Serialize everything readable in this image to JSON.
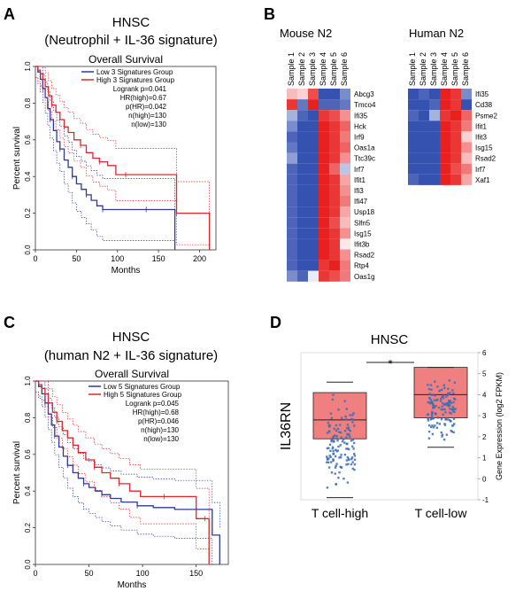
{
  "panels": {
    "a": {
      "letter": "A",
      "title_line1": "HNSC",
      "title_line2": "(Neutrophil + IL-36 signature)"
    },
    "b": {
      "letter": "B"
    },
    "c": {
      "letter": "C",
      "title_line1": "HNSC",
      "title_line2": "(human N2 + IL-36 signature)"
    },
    "d": {
      "letter": "D",
      "title": "HNSC"
    }
  },
  "colors": {
    "low": "#2b3a9a",
    "high": "#e0262b",
    "heat_low": "#1f3fa8",
    "heat_mid": "#ffffff",
    "heat_high": "#e8201f",
    "box_fill": "#f08080",
    "points": "#3a6fb6"
  },
  "chart_data": [
    {
      "id": "survival_a",
      "type": "line",
      "title": "Overall Survival",
      "xlabel": "Months",
      "ylabel": "Percent survival",
      "xlim": [
        0,
        220
      ],
      "ylim": [
        0,
        1.0
      ],
      "xticks": [
        "0",
        "50",
        "100",
        "150",
        "200"
      ],
      "yticks": [
        "0.0",
        "0.2",
        "0.4",
        "0.6",
        "0.8",
        "1.0"
      ],
      "legend": [
        "Low 3 Signatures Group",
        "High 3 Signatures Group"
      ],
      "stats": [
        "Logrank p=0.041",
        "HR(high)=0.67",
        "p(HR)=0.042",
        "n(high)=130",
        "n(low)=130"
      ],
      "series": [
        {
          "name": "Low 3 Signatures Group",
          "x": [
            0,
            3,
            6,
            9,
            12,
            15,
            18,
            22,
            26,
            30,
            35,
            40,
            45,
            50,
            56,
            62,
            68,
            75,
            82,
            95,
            110,
            135,
            150,
            165,
            170
          ],
          "y": [
            1.0,
            0.97,
            0.93,
            0.88,
            0.83,
            0.77,
            0.71,
            0.65,
            0.59,
            0.55,
            0.49,
            0.45,
            0.4,
            0.36,
            0.33,
            0.3,
            0.27,
            0.24,
            0.22,
            0.22,
            0.22,
            0.22,
            0.22,
            0.22,
            0.0
          ]
        },
        {
          "name": "High 3 Signatures Group",
          "x": [
            0,
            3,
            6,
            9,
            12,
            16,
            20,
            25,
            30,
            35,
            40,
            47,
            55,
            62,
            70,
            78,
            88,
            98,
            110,
            140,
            165,
            172,
            200,
            212
          ],
          "y": [
            1.0,
            0.98,
            0.96,
            0.93,
            0.89,
            0.84,
            0.79,
            0.75,
            0.71,
            0.67,
            0.64,
            0.6,
            0.57,
            0.53,
            0.5,
            0.48,
            0.46,
            0.41,
            0.41,
            0.41,
            0.41,
            0.2,
            0.2,
            0.0
          ]
        }
      ]
    },
    {
      "id": "survival_c",
      "type": "line",
      "title": "Overall Survival",
      "xlabel": "Months",
      "ylabel": "Percent survival",
      "xlim": [
        0,
        180
      ],
      "ylim": [
        0,
        1.0
      ],
      "xticks": [
        "0",
        "50",
        "100",
        "150"
      ],
      "yticks": [
        "0.0",
        "0.2",
        "0.4",
        "0.6",
        "0.8",
        "1.0"
      ],
      "legend": [
        "Low 5 Signatures Group",
        "High 5 Signatures Group"
      ],
      "stats": [
        "Logrank p=0.045",
        "HR(high)=0.68",
        "p(HR)=0.046",
        "n(high)=130",
        "n(low)=130"
      ],
      "series": [
        {
          "name": "Low 5 Signatures Group",
          "x": [
            0,
            3,
            6,
            9,
            12,
            15,
            18,
            22,
            26,
            30,
            35,
            40,
            45,
            50,
            56,
            62,
            70,
            80,
            95,
            110,
            130,
            150,
            160,
            165,
            172
          ],
          "y": [
            1.0,
            0.97,
            0.93,
            0.88,
            0.82,
            0.76,
            0.7,
            0.64,
            0.59,
            0.54,
            0.5,
            0.47,
            0.44,
            0.42,
            0.4,
            0.38,
            0.36,
            0.34,
            0.32,
            0.31,
            0.3,
            0.3,
            0.3,
            0.16,
            0.0
          ]
        },
        {
          "name": "High 5 Signatures Group",
          "x": [
            0,
            3,
            6,
            9,
            12,
            16,
            20,
            25,
            30,
            35,
            40,
            47,
            55,
            62,
            70,
            78,
            88,
            98,
            120,
            138,
            150,
            158,
            162
          ],
          "y": [
            1.0,
            0.98,
            0.96,
            0.93,
            0.88,
            0.83,
            0.78,
            0.73,
            0.69,
            0.65,
            0.61,
            0.57,
            0.53,
            0.5,
            0.47,
            0.44,
            0.4,
            0.37,
            0.37,
            0.37,
            0.25,
            0.25,
            0.0
          ]
        }
      ]
    },
    {
      "id": "heatmap_mouse",
      "type": "heatmap",
      "title": "Mouse N2",
      "columns": [
        "Sample 1",
        "Sample 2",
        "Sample 3",
        "Sample 4",
        "Sample 5",
        "Sample 6"
      ],
      "rows": [
        "Abcg3",
        "Tmco4",
        "Ifi35",
        "Hck",
        "Irf9",
        "Oas1a",
        "Ttc39c",
        "Irf7",
        "Ifit1",
        "Ifi3",
        "Ifi47",
        "Usp18",
        "Slfn5",
        "Isg15",
        "Ifit3b",
        "Rsad2",
        "Rtp4",
        "Oas1g"
      ],
      "values": [
        [
          0.3,
          0.2,
          0.8,
          -0.9,
          -0.9,
          -0.6
        ],
        [
          0.9,
          -0.7,
          1.0,
          -0.8,
          -0.8,
          -0.7
        ],
        [
          -0.4,
          -0.8,
          -0.9,
          0.9,
          0.8,
          0.5
        ],
        [
          -0.6,
          -0.9,
          -0.9,
          1.0,
          0.9,
          0.7
        ],
        [
          -0.8,
          -0.9,
          -0.9,
          1.0,
          0.9,
          0.6
        ],
        [
          -0.7,
          -0.9,
          -0.9,
          1.0,
          0.9,
          0.7
        ],
        [
          -0.5,
          -0.9,
          -0.9,
          1.0,
          0.9,
          0.5
        ],
        [
          -0.8,
          -0.9,
          -0.9,
          1.0,
          0.7,
          -0.3
        ],
        [
          -0.8,
          -0.9,
          -0.9,
          1.0,
          0.9,
          0.4
        ],
        [
          -0.8,
          -0.9,
          -0.9,
          1.0,
          0.9,
          0.5
        ],
        [
          -0.8,
          -0.9,
          -0.9,
          1.0,
          0.9,
          0.6
        ],
        [
          -0.8,
          -0.9,
          -0.9,
          1.0,
          0.9,
          0.4
        ],
        [
          -0.8,
          -0.9,
          -0.9,
          1.0,
          0.8,
          0.3
        ],
        [
          -0.8,
          -0.9,
          -0.9,
          1.0,
          0.9,
          0.5
        ],
        [
          -0.8,
          -0.9,
          -0.9,
          1.0,
          0.9,
          0.1
        ],
        [
          -0.8,
          -0.9,
          -0.9,
          1.0,
          0.9,
          0.5
        ],
        [
          -0.8,
          -0.9,
          -0.9,
          0.9,
          1.0,
          0.6
        ],
        [
          -0.6,
          -0.8,
          -0.1,
          0.9,
          0.8,
          0.6
        ]
      ]
    },
    {
      "id": "heatmap_human",
      "type": "heatmap",
      "title": "Human N2",
      "columns": [
        "Sample 1",
        "Sample 2",
        "Sample 3",
        "Sample 4",
        "Sample 5",
        "Sample 6"
      ],
      "rows": [
        "Ifi35",
        "Cd38",
        "Psme2",
        "Ifit1",
        "Ifit3",
        "Isg15",
        "Rsad2",
        "Irf7",
        "Xaf1"
      ],
      "values": [
        [
          -0.9,
          -0.8,
          -0.9,
          1.0,
          0.9,
          -0.6
        ],
        [
          -0.9,
          -0.9,
          -0.8,
          1.0,
          0.9,
          -0.9
        ],
        [
          -0.8,
          -0.9,
          -0.4,
          0.9,
          1.0,
          0.7
        ],
        [
          -0.9,
          -0.9,
          -0.9,
          1.0,
          0.9,
          0.6
        ],
        [
          -0.9,
          -0.9,
          -0.9,
          1.0,
          0.9,
          0.2
        ],
        [
          -0.9,
          -0.9,
          -0.9,
          1.0,
          0.9,
          0.5
        ],
        [
          -0.9,
          -0.9,
          -0.9,
          1.0,
          0.9,
          0.3
        ],
        [
          -0.9,
          -0.9,
          -0.9,
          1.0,
          0.8,
          0.6
        ],
        [
          -0.8,
          -0.9,
          -0.9,
          1.0,
          0.9,
          0.4
        ]
      ]
    },
    {
      "id": "box_d",
      "type": "box",
      "title": "HNSC",
      "ylabel": "Gene Expression (log2 FPKM)",
      "gene": "IL36RN",
      "categories": [
        "T cell-high",
        "T cell-low"
      ],
      "ylim": [
        -1,
        6
      ],
      "yticks": [
        "-1",
        "0",
        "1",
        "2",
        "3",
        "4",
        "5",
        "6"
      ],
      "significance": "*",
      "boxes": [
        {
          "name": "T cell-high",
          "q1": 1.9,
          "median": 2.8,
          "q3": 4.1,
          "whisker_low": -0.9,
          "whisker_high": 4.6
        },
        {
          "name": "T cell-low",
          "q1": 2.9,
          "median": 4.0,
          "q3": 5.3,
          "whisker_low": 1.5,
          "whisker_high": 5.3
        }
      ]
    }
  ]
}
